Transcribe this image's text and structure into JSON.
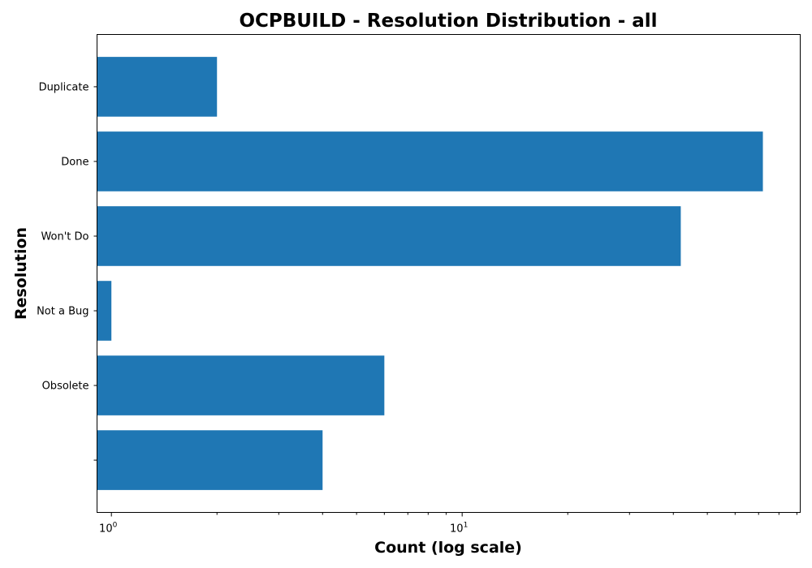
{
  "chart_data": {
    "type": "bar",
    "orientation": "horizontal",
    "title": "OCPBUILD - Resolution Distribution - all",
    "xlabel": "Count (log scale)",
    "ylabel": "Resolution",
    "x_scale": "log",
    "xlim": [
      0.91,
      92
    ],
    "x_ticks": [
      {
        "value": 1,
        "base": "10",
        "exp": "0"
      },
      {
        "value": 10,
        "base": "10",
        "exp": "1"
      }
    ],
    "categories": [
      "Duplicate",
      "Done",
      "Won't Do",
      "Not a Bug",
      "Obsolete",
      ""
    ],
    "values": [
      2,
      72,
      42,
      1,
      6,
      4
    ],
    "bar_color": "#1f77b4",
    "grid": false,
    "legend": "none"
  }
}
